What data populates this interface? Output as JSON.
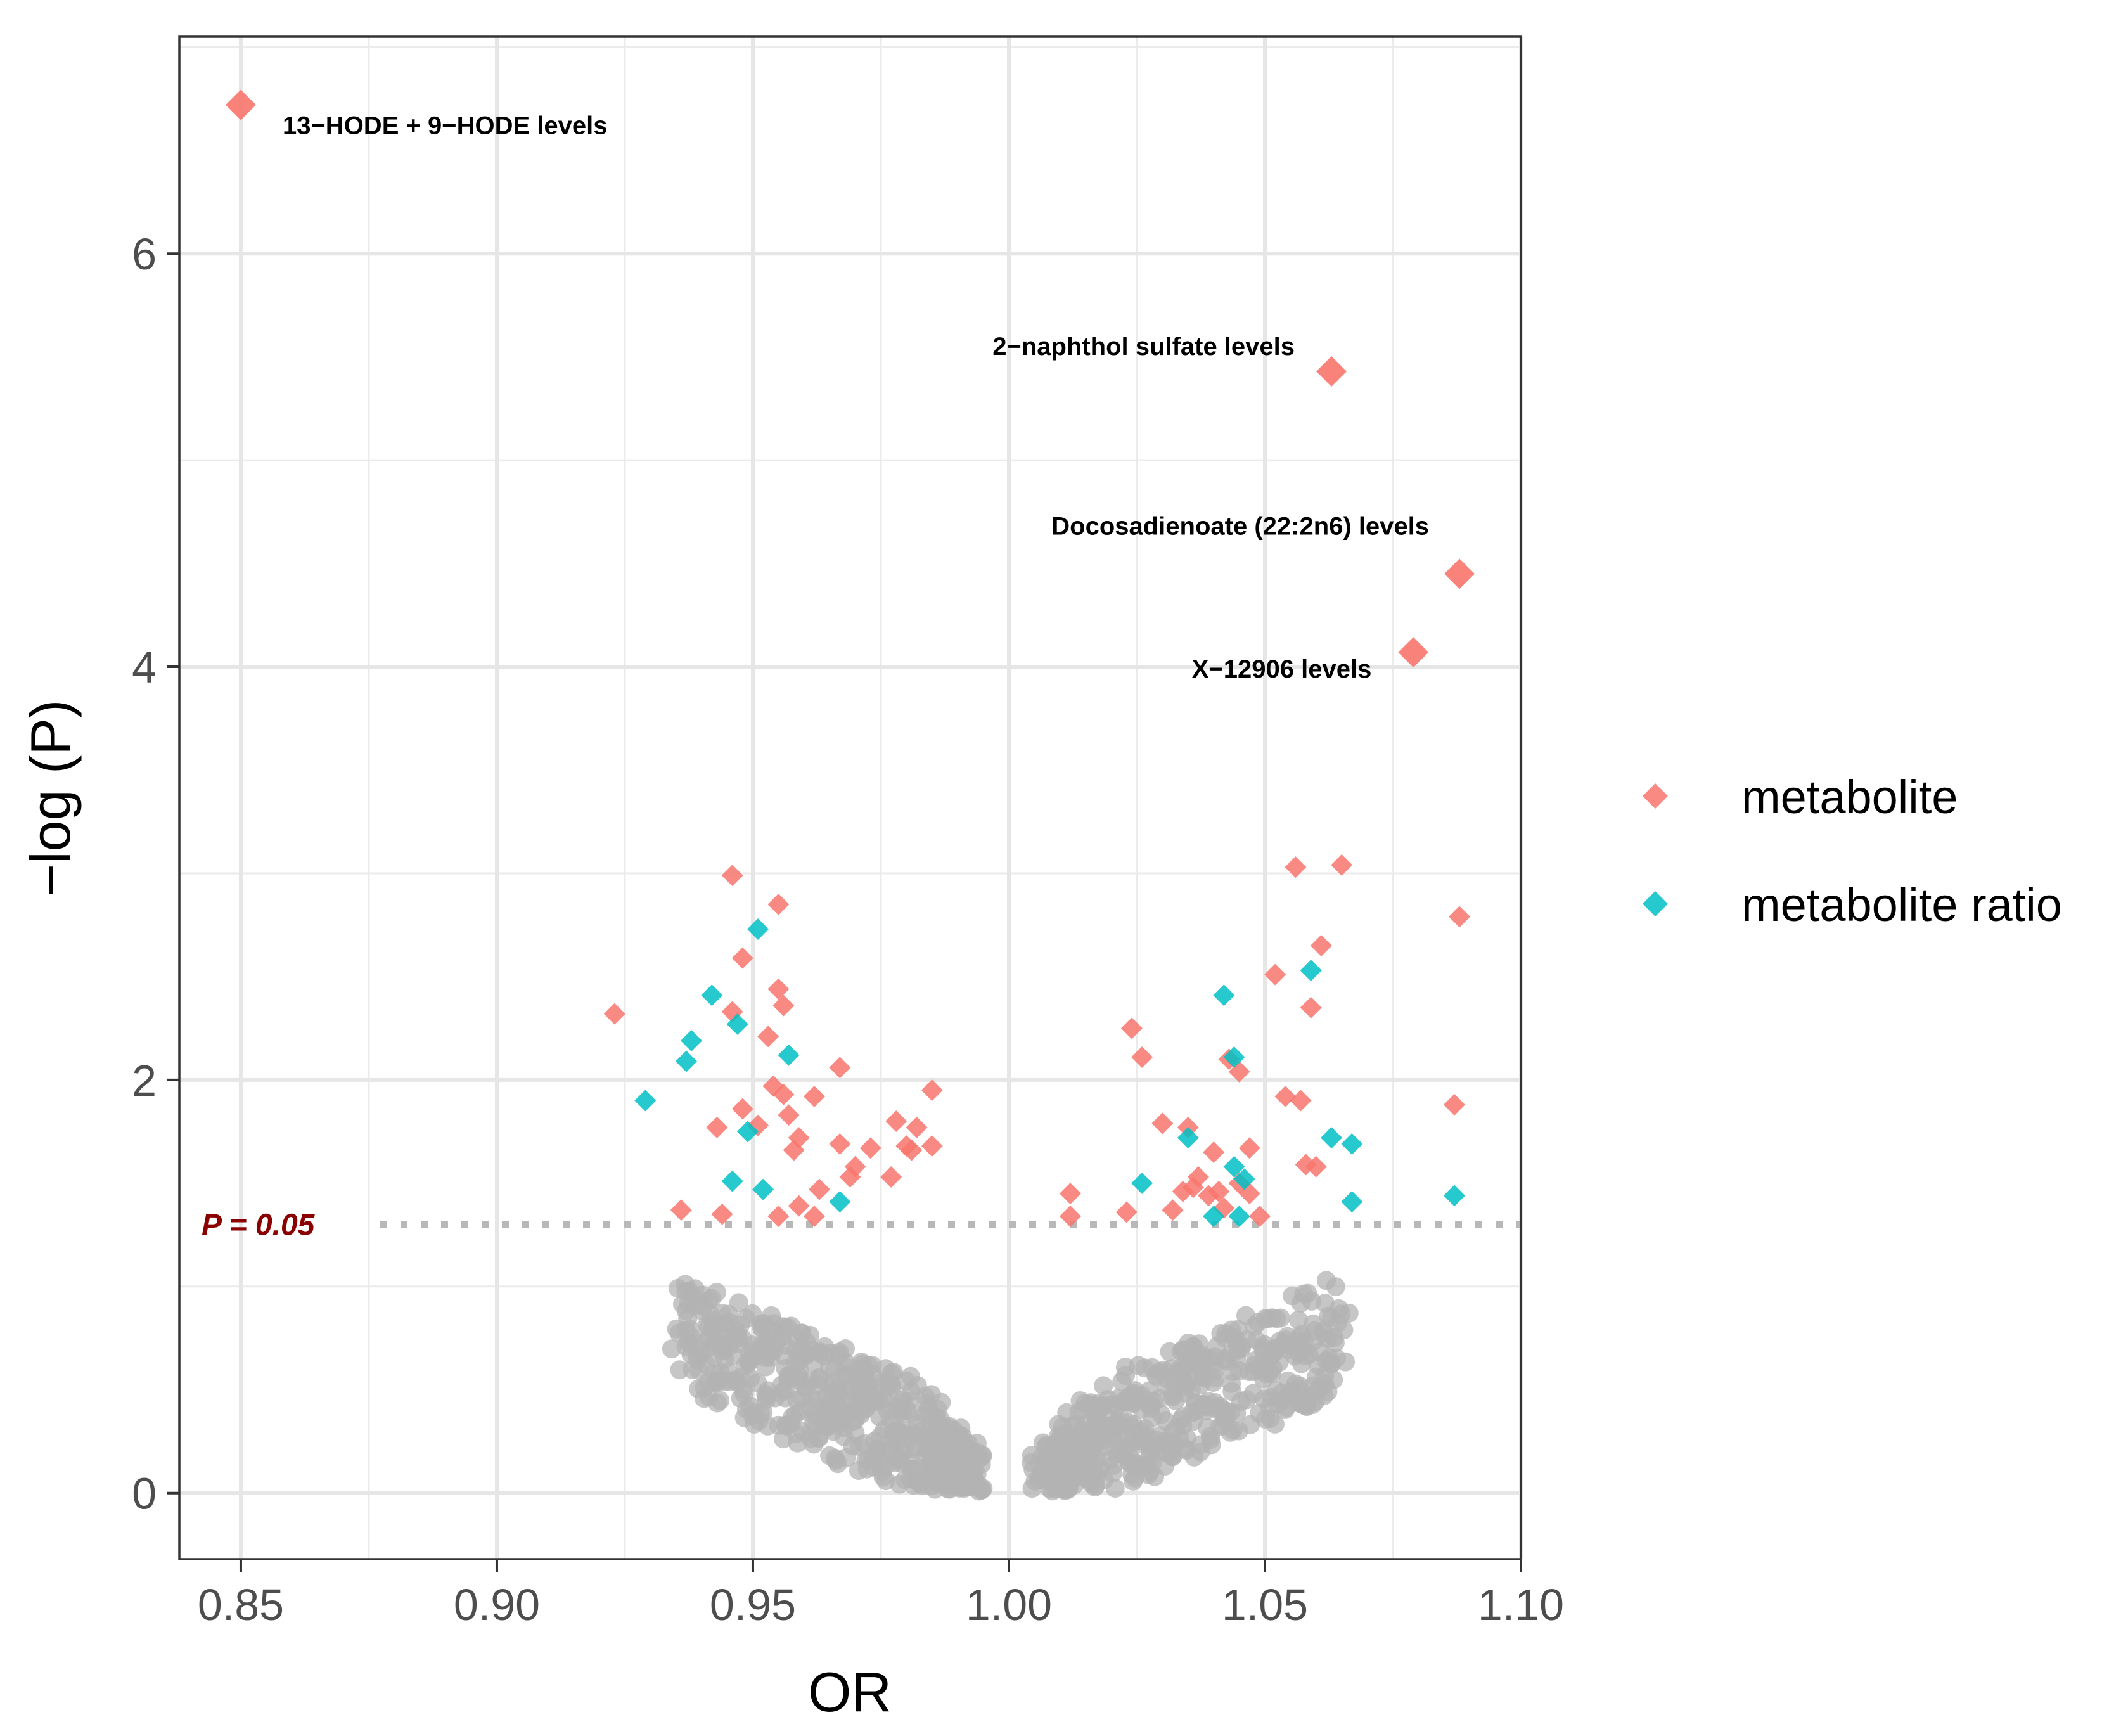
{
  "chart_data": {
    "type": "scatter",
    "title": "",
    "xlabel": "OR",
    "ylabel": "−log (P)",
    "xlim": [
      0.838,
      1.1
    ],
    "ylim": [
      -0.32,
      7.05
    ],
    "xticks": [
      0.85,
      0.9,
      0.95,
      1.0,
      1.05,
      1.1
    ],
    "xtick_labels": [
      "0.85",
      "0.90",
      "0.95",
      "1.00",
      "1.05",
      "1.10"
    ],
    "yticks": [
      0,
      2,
      4,
      6
    ],
    "ytick_labels": [
      "0",
      "2",
      "4",
      "6"
    ],
    "grid": true,
    "threshold": {
      "y": 1.301,
      "label": "P = 0.05",
      "color": "#8b0000"
    },
    "colors": {
      "metabolite": "#f8766d",
      "metabolite_ratio": "#00bfc4",
      "nonsig": "#b3b3b3"
    },
    "legend": {
      "placement": "right",
      "entries": [
        {
          "label": "metabolite",
          "series": "metabolite"
        },
        {
          "label": "metabolite ratio",
          "series": "metabolite_ratio"
        }
      ]
    },
    "highlighted": [
      {
        "label": "13−HODE + 9−HODE levels",
        "x": 0.85,
        "y": 6.72,
        "anchor": "right"
      },
      {
        "label": "2−naphthol sulfate levels",
        "x": 1.063,
        "y": 5.43,
        "anchor": "left-above"
      },
      {
        "label": "Docosadienoate (22:2n6) levels",
        "x": 1.088,
        "y": 4.45,
        "anchor": "left-above"
      },
      {
        "label": "X−12906 levels",
        "x": 1.079,
        "y": 4.07,
        "anchor": "left"
      }
    ],
    "series": [
      {
        "name": "metabolite",
        "points": [
          [
            0.923,
            2.32
          ],
          [
            0.936,
            1.37
          ],
          [
            0.943,
            1.77
          ],
          [
            0.944,
            1.35
          ],
          [
            0.946,
            2.33
          ],
          [
            0.946,
            2.99
          ],
          [
            0.948,
            2.59
          ],
          [
            0.948,
            1.86
          ],
          [
            0.951,
            1.78
          ],
          [
            0.953,
            2.21
          ],
          [
            0.954,
            1.97
          ],
          [
            0.955,
            2.44
          ],
          [
            0.955,
            1.34
          ],
          [
            0.955,
            2.85
          ],
          [
            0.956,
            1.93
          ],
          [
            0.956,
            2.36
          ],
          [
            0.957,
            1.83
          ],
          [
            0.958,
            1.66
          ],
          [
            0.959,
            1.72
          ],
          [
            0.959,
            1.39
          ],
          [
            0.962,
            1.92
          ],
          [
            0.962,
            1.34
          ],
          [
            0.963,
            1.47
          ],
          [
            0.967,
            2.06
          ],
          [
            0.967,
            1.69
          ],
          [
            0.969,
            1.53
          ],
          [
            0.97,
            1.58
          ],
          [
            0.973,
            1.67
          ],
          [
            0.977,
            1.53
          ],
          [
            0.978,
            1.8
          ],
          [
            0.98,
            1.68
          ],
          [
            0.981,
            1.66
          ],
          [
            0.982,
            1.77
          ],
          [
            0.985,
            1.95
          ],
          [
            0.985,
            1.68
          ],
          [
            1.012,
            1.45
          ],
          [
            1.012,
            1.34
          ],
          [
            1.023,
            1.36
          ],
          [
            1.024,
            2.25
          ],
          [
            1.026,
            2.11
          ],
          [
            1.03,
            1.79
          ],
          [
            1.032,
            1.37
          ],
          [
            1.034,
            1.46
          ],
          [
            1.035,
            1.77
          ],
          [
            1.036,
            1.48
          ],
          [
            1.037,
            1.53
          ],
          [
            1.039,
            1.44
          ],
          [
            1.04,
            1.65
          ],
          [
            1.041,
            1.46
          ],
          [
            1.042,
            1.38
          ],
          [
            1.043,
            2.1
          ],
          [
            1.045,
            1.5
          ],
          [
            1.045,
            2.04
          ],
          [
            1.047,
            1.67
          ],
          [
            1.047,
            1.45
          ],
          [
            1.049,
            1.34
          ],
          [
            1.052,
            2.51
          ],
          [
            1.054,
            1.92
          ],
          [
            1.056,
            3.03
          ],
          [
            1.057,
            1.9
          ],
          [
            1.058,
            1.59
          ],
          [
            1.059,
            2.35
          ],
          [
            1.06,
            1.58
          ],
          [
            1.061,
            2.65
          ],
          [
            1.065,
            3.04
          ],
          [
            1.087,
            1.88
          ],
          [
            1.088,
            2.79
          ]
        ]
      },
      {
        "name": "metabolite_ratio",
        "points": [
          [
            0.929,
            1.9
          ],
          [
            0.937,
            2.09
          ],
          [
            0.938,
            2.19
          ],
          [
            0.942,
            2.41
          ],
          [
            0.946,
            1.51
          ],
          [
            0.947,
            2.27
          ],
          [
            0.949,
            1.75
          ],
          [
            0.951,
            2.73
          ],
          [
            0.952,
            1.47
          ],
          [
            0.957,
            2.12
          ],
          [
            0.967,
            1.41
          ],
          [
            1.026,
            1.5
          ],
          [
            1.035,
            1.72
          ],
          [
            1.04,
            1.34
          ],
          [
            1.042,
            2.41
          ],
          [
            1.044,
            2.11
          ],
          [
            1.044,
            1.58
          ],
          [
            1.045,
            1.34
          ],
          [
            1.046,
            1.52
          ],
          [
            1.059,
            2.53
          ],
          [
            1.063,
            1.72
          ],
          [
            1.067,
            1.69
          ],
          [
            1.067,
            1.41
          ],
          [
            1.087,
            1.44
          ]
        ]
      }
    ],
    "nonsignificant_count": 1000
  }
}
